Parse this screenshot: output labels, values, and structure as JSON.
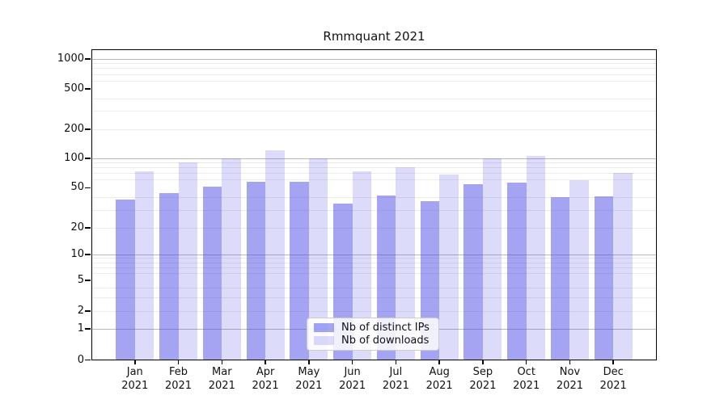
{
  "title": "Rmmquant 2021",
  "chart_data": {
    "type": "bar",
    "title": "Rmmquant 2021",
    "x_year": "2021",
    "categories": [
      "Jan",
      "Feb",
      "Mar",
      "Apr",
      "May",
      "Jun",
      "Jul",
      "Aug",
      "Sep",
      "Oct",
      "Nov",
      "Dec"
    ],
    "series": [
      {
        "name": "Nb of distinct IPs",
        "color_hex": "#a5a5f1",
        "fill": "rgba(70,70,230,0.49)",
        "values": [
          38,
          44,
          51,
          57,
          57,
          35,
          42,
          37,
          54,
          56,
          40,
          41
        ]
      },
      {
        "name": "Nb of downloads",
        "color_hex": "#dcdcf8",
        "fill": "rgba(70,70,230,0.19)",
        "values": [
          73,
          91,
          100,
          122,
          100,
          74,
          81,
          68,
          100,
          106,
          60,
          71
        ]
      }
    ],
    "xlabel": "",
    "ylabel": "",
    "y_scale": "symlog",
    "y_ticks": [
      0,
      1,
      2,
      5,
      10,
      20,
      50,
      100,
      200,
      500,
      1000
    ],
    "y_major_gridlines": [
      1,
      10,
      100,
      1000
    ],
    "y_minor_gridlines": [
      2,
      3,
      4,
      6,
      7,
      8,
      9,
      20,
      30,
      40,
      60,
      70,
      80,
      90,
      200,
      300,
      400,
      600,
      700,
      800,
      900
    ],
    "ylim": [
      0,
      1200
    ],
    "grid": "both",
    "legend_position": "lower center",
    "colors": {
      "axis": "#000000",
      "major_grid": "#b9b9b9",
      "minor_grid": "#ebebeb",
      "background": "#ffffff",
      "legend_border": "#cccccc"
    }
  }
}
